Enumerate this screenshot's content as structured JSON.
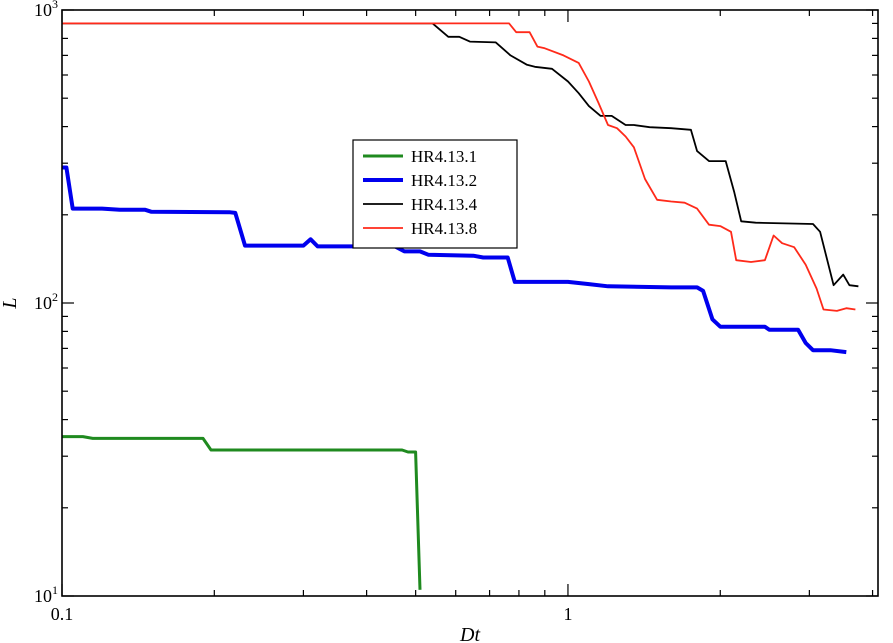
{
  "chart_data": {
    "type": "line",
    "title": "",
    "xlabel": "Dt",
    "ylabel": "L",
    "xscale": "log",
    "yscale": "log",
    "xlim": [
      0.1,
      4.1
    ],
    "ylim": [
      10,
      1000
    ],
    "grid": false,
    "legend_position": "center-left",
    "x_ticks": [
      {
        "value": 0.1,
        "label": "0.1"
      },
      {
        "value": 1,
        "label": "1"
      }
    ],
    "y_ticks": [
      {
        "value": 10,
        "base": "10",
        "exp": "1"
      },
      {
        "value": 100,
        "base": "10",
        "exp": "2"
      },
      {
        "value": 1000,
        "base": "10",
        "exp": "3"
      }
    ],
    "series": [
      {
        "name": "HR4.13.1",
        "color": "#1f8a1f",
        "width": 3,
        "points": [
          [
            0.1,
            35
          ],
          [
            0.11,
            35
          ],
          [
            0.115,
            34.5
          ],
          [
            0.19,
            34.5
          ],
          [
            0.197,
            31.5
          ],
          [
            0.47,
            31.5
          ],
          [
            0.483,
            31
          ],
          [
            0.5,
            31
          ],
          [
            0.51,
            10.5
          ]
        ]
      },
      {
        "name": "HR4.13.2",
        "color": "#0000ee",
        "width": 4,
        "points": [
          [
            0.1,
            290
          ],
          [
            0.102,
            290
          ],
          [
            0.105,
            210
          ],
          [
            0.12,
            210
          ],
          [
            0.13,
            208
          ],
          [
            0.146,
            208
          ],
          [
            0.15,
            205
          ],
          [
            0.215,
            204
          ],
          [
            0.22,
            203
          ],
          [
            0.23,
            157
          ],
          [
            0.3,
            157
          ],
          [
            0.31,
            165
          ],
          [
            0.32,
            156
          ],
          [
            0.455,
            156
          ],
          [
            0.475,
            150
          ],
          [
            0.51,
            150
          ],
          [
            0.53,
            146
          ],
          [
            0.65,
            145
          ],
          [
            0.68,
            143
          ],
          [
            0.76,
            143
          ],
          [
            0.785,
            118
          ],
          [
            1.0,
            118
          ],
          [
            1.1,
            116
          ],
          [
            1.2,
            114
          ],
          [
            1.6,
            113
          ],
          [
            1.8,
            113
          ],
          [
            1.85,
            110
          ],
          [
            1.93,
            88
          ],
          [
            2.0,
            83
          ],
          [
            2.45,
            83
          ],
          [
            2.5,
            81
          ],
          [
            2.85,
            81
          ],
          [
            2.95,
            73
          ],
          [
            3.05,
            69
          ],
          [
            3.3,
            69
          ],
          [
            3.55,
            68
          ]
        ]
      },
      {
        "name": "HR4.13.4",
        "color": "#000000",
        "width": 1.8,
        "points": [
          [
            0.1,
            900
          ],
          [
            0.54,
            900
          ],
          [
            0.58,
            810
          ],
          [
            0.61,
            810
          ],
          [
            0.64,
            780
          ],
          [
            0.72,
            775
          ],
          [
            0.77,
            700
          ],
          [
            0.83,
            650
          ],
          [
            0.86,
            640
          ],
          [
            0.93,
            630
          ],
          [
            1.0,
            570
          ],
          [
            1.05,
            520
          ],
          [
            1.1,
            470
          ],
          [
            1.16,
            435
          ],
          [
            1.22,
            435
          ],
          [
            1.3,
            405
          ],
          [
            1.35,
            405
          ],
          [
            1.45,
            398
          ],
          [
            1.6,
            395
          ],
          [
            1.75,
            390
          ],
          [
            1.8,
            330
          ],
          [
            1.9,
            305
          ],
          [
            2.05,
            305
          ],
          [
            2.13,
            240
          ],
          [
            2.2,
            190
          ],
          [
            2.35,
            188
          ],
          [
            3.05,
            186
          ],
          [
            3.15,
            175
          ],
          [
            3.35,
            115
          ],
          [
            3.5,
            125
          ],
          [
            3.6,
            115
          ],
          [
            3.75,
            114
          ]
        ]
      },
      {
        "name": "HR4.13.8",
        "color": "#ff2a1a",
        "width": 1.8,
        "points": [
          [
            0.1,
            900
          ],
          [
            0.765,
            900
          ],
          [
            0.79,
            840
          ],
          [
            0.84,
            840
          ],
          [
            0.87,
            750
          ],
          [
            0.9,
            740
          ],
          [
            0.98,
            700
          ],
          [
            1.05,
            660
          ],
          [
            1.1,
            570
          ],
          [
            1.15,
            480
          ],
          [
            1.2,
            405
          ],
          [
            1.25,
            395
          ],
          [
            1.3,
            370
          ],
          [
            1.35,
            340
          ],
          [
            1.42,
            265
          ],
          [
            1.5,
            225
          ],
          [
            1.6,
            222
          ],
          [
            1.7,
            220
          ],
          [
            1.8,
            210
          ],
          [
            1.9,
            185
          ],
          [
            2.0,
            183
          ],
          [
            2.1,
            175
          ],
          [
            2.15,
            140
          ],
          [
            2.3,
            138
          ],
          [
            2.45,
            140
          ],
          [
            2.55,
            170
          ],
          [
            2.65,
            160
          ],
          [
            2.8,
            155
          ],
          [
            2.95,
            135
          ],
          [
            3.1,
            112
          ],
          [
            3.2,
            95
          ],
          [
            3.4,
            94
          ],
          [
            3.55,
            96
          ],
          [
            3.7,
            95
          ]
        ]
      }
    ]
  }
}
